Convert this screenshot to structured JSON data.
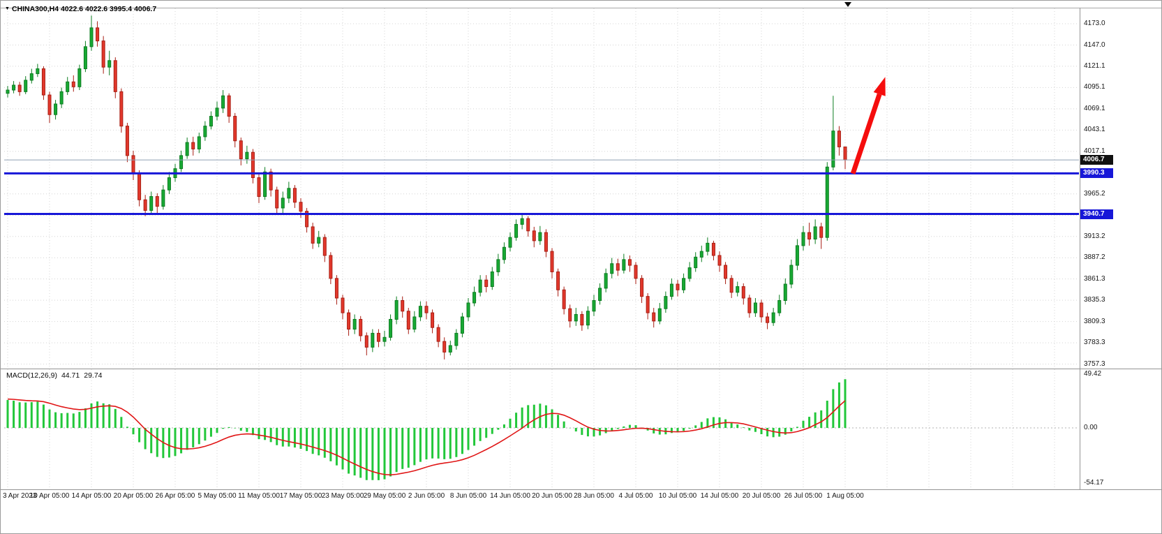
{
  "window": {
    "symbol_period": "CHINA300,H4",
    "ohlc_text": "4022.6 4022.6 3995.4 4006.7"
  },
  "colors": {
    "bull": "#18a934",
    "bull_border": "#0c7d20",
    "bear": "#e2382c",
    "bear_border": "#a81e13",
    "hline_blue": "#1717d8",
    "grid": "#d4d4d4",
    "zero_line": "#b0b0b0",
    "macd_hist": "#22c73a",
    "macd_signal": "#e01515",
    "arrow": "#f50d0d",
    "price_line": "#8fa0b4",
    "tag_current_bg": "#101010",
    "text": "#111111"
  },
  "chart_data": [
    {
      "type": "candlestick",
      "symbol": "CHINA300",
      "timeframe": "H4",
      "current_bar": {
        "open": 4022.6,
        "high": 4022.6,
        "low": 3995.4,
        "close": 4006.7
      },
      "y_axis_ticks": [
        "4173.0",
        "4147.0",
        "4121.1",
        "4095.1",
        "4069.1",
        "4043.1",
        "4017.1",
        "3991.2",
        "3965.2",
        "3939.2",
        "3913.2",
        "3887.2",
        "3861.3",
        "3835.3",
        "3809.3",
        "3783.3",
        "3757.3"
      ],
      "x_axis_ticks": [
        "3 Apr 2023",
        "10 Apr 05:00",
        "14 Apr 05:00",
        "20 Apr 05:00",
        "26 Apr 05:00",
        "5 May 05:00",
        "11 May 05:00",
        "17 May 05:00",
        "23 May 05:00",
        "29 May 05:00",
        "2 Jun 05:00",
        "8 Jun 05:00",
        "14 Jun 05:00",
        "20 Jun 05:00",
        "28 Jun 05:00",
        "4 Jul 05:00",
        "10 Jul 05:00",
        "14 Jul 05:00",
        "20 Jul 05:00",
        "26 Jul 05:00",
        "1 Aug 05:00"
      ],
      "bars_per_tick": 7,
      "horizontal_lines": [
        {
          "price": 3990.3,
          "label": "3990.3"
        },
        {
          "price": 3940.7,
          "label": "3940.7"
        }
      ],
      "current_price": {
        "price": 4006.7,
        "label": "4006.7"
      },
      "arrow_annotation": {
        "from": {
          "bar": 141.3,
          "price": 3990
        },
        "to": {
          "bar": 146.7,
          "price": 4108
        }
      },
      "candles": [
        [
          4088,
          4097,
          4083,
          4092
        ],
        [
          4092,
          4103,
          4088,
          4098
        ],
        [
          4098,
          4102,
          4085,
          4090
        ],
        [
          4090,
          4109,
          4087,
          4104
        ],
        [
          4104,
          4118,
          4100,
          4112
        ],
        [
          4112,
          4124,
          4108,
          4118
        ],
        [
          4118,
          4121,
          4080,
          4086
        ],
        [
          4086,
          4090,
          4052,
          4062
        ],
        [
          4062,
          4080,
          4056,
          4075
        ],
        [
          4075,
          4095,
          4070,
          4090
        ],
        [
          4090,
          4108,
          4086,
          4102
        ],
        [
          4102,
          4110,
          4090,
          4096
        ],
        [
          4096,
          4123,
          4092,
          4118
        ],
        [
          4118,
          4152,
          4114,
          4145
        ],
        [
          4145,
          4183,
          4140,
          4168
        ],
        [
          4168,
          4176,
          4145,
          4152
        ],
        [
          4152,
          4158,
          4112,
          4120
        ],
        [
          4120,
          4140,
          4110,
          4128
        ],
        [
          4128,
          4132,
          4082,
          4090
        ],
        [
          4090,
          4094,
          4040,
          4048
        ],
        [
          4048,
          4052,
          4004,
          4012
        ],
        [
          4012,
          4018,
          3982,
          3990
        ],
        [
          3990,
          3994,
          3950,
          3958
        ],
        [
          3958,
          3964,
          3938,
          3945
        ],
        [
          3945,
          3968,
          3940,
          3962
        ],
        [
          3962,
          3966,
          3942,
          3950
        ],
        [
          3950,
          3976,
          3946,
          3970
        ],
        [
          3970,
          3992,
          3965,
          3985
        ],
        [
          3985,
          4002,
          3980,
          3996
        ],
        [
          3996,
          4018,
          3992,
          4012
        ],
        [
          4012,
          4034,
          4008,
          4028
        ],
        [
          4028,
          4035,
          4012,
          4020
        ],
        [
          4020,
          4040,
          4015,
          4035
        ],
        [
          4035,
          4054,
          4030,
          4048
        ],
        [
          4048,
          4066,
          4044,
          4060
        ],
        [
          4060,
          4078,
          4055,
          4070
        ],
        [
          4070,
          4092,
          4064,
          4085
        ],
        [
          4085,
          4088,
          4052,
          4060
        ],
        [
          4060,
          4064,
          4022,
          4030
        ],
        [
          4030,
          4034,
          4000,
          4008
        ],
        [
          4008,
          4024,
          4002,
          4016
        ],
        [
          4016,
          4020,
          3978,
          3985
        ],
        [
          3985,
          3990,
          3954,
          3962
        ],
        [
          3962,
          3998,
          3958,
          3992
        ],
        [
          3992,
          3996,
          3962,
          3970
        ],
        [
          3970,
          3974,
          3940,
          3948
        ],
        [
          3948,
          3968,
          3942,
          3960
        ],
        [
          3960,
          3980,
          3954,
          3972
        ],
        [
          3972,
          3976,
          3948,
          3955
        ],
        [
          3955,
          3960,
          3936,
          3944
        ],
        [
          3944,
          3948,
          3918,
          3925
        ],
        [
          3925,
          3930,
          3898,
          3905
        ],
        [
          3905,
          3920,
          3900,
          3912
        ],
        [
          3912,
          3916,
          3882,
          3890
        ],
        [
          3890,
          3894,
          3855,
          3862
        ],
        [
          3862,
          3866,
          3830,
          3838
        ],
        [
          3838,
          3842,
          3812,
          3820
        ],
        [
          3820,
          3824,
          3792,
          3800
        ],
        [
          3800,
          3818,
          3794,
          3812
        ],
        [
          3812,
          3816,
          3785,
          3792
        ],
        [
          3792,
          3796,
          3768,
          3778
        ],
        [
          3778,
          3800,
          3772,
          3795
        ],
        [
          3795,
          3800,
          3778,
          3785
        ],
        [
          3785,
          3798,
          3779,
          3790
        ],
        [
          3790,
          3818,
          3786,
          3812
        ],
        [
          3812,
          3840,
          3806,
          3835
        ],
        [
          3835,
          3840,
          3814,
          3822
        ],
        [
          3822,
          3826,
          3794,
          3800
        ],
        [
          3800,
          3822,
          3796,
          3815
        ],
        [
          3815,
          3834,
          3810,
          3828
        ],
        [
          3828,
          3834,
          3812,
          3820
        ],
        [
          3820,
          3824,
          3795,
          3802
        ],
        [
          3802,
          3806,
          3778,
          3785
        ],
        [
          3785,
          3790,
          3763,
          3772
        ],
        [
          3772,
          3786,
          3768,
          3780
        ],
        [
          3780,
          3800,
          3775,
          3795
        ],
        [
          3795,
          3820,
          3790,
          3815
        ],
        [
          3815,
          3838,
          3810,
          3832
        ],
        [
          3832,
          3852,
          3828,
          3845
        ],
        [
          3845,
          3866,
          3840,
          3860
        ],
        [
          3860,
          3866,
          3845,
          3852
        ],
        [
          3852,
          3876,
          3848,
          3870
        ],
        [
          3870,
          3892,
          3865,
          3885
        ],
        [
          3885,
          3906,
          3880,
          3900
        ],
        [
          3900,
          3918,
          3895,
          3912
        ],
        [
          3912,
          3934,
          3908,
          3928
        ],
        [
          3928,
          3942,
          3922,
          3935
        ],
        [
          3935,
          3938,
          3913,
          3920
        ],
        [
          3920,
          3925,
          3900,
          3908
        ],
        [
          3908,
          3926,
          3903,
          3918
        ],
        [
          3918,
          3922,
          3888,
          3895
        ],
        [
          3895,
          3899,
          3862,
          3870
        ],
        [
          3870,
          3874,
          3840,
          3848
        ],
        [
          3848,
          3852,
          3818,
          3825
        ],
        [
          3825,
          3830,
          3802,
          3810
        ],
        [
          3810,
          3826,
          3804,
          3818
        ],
        [
          3818,
          3822,
          3798,
          3805
        ],
        [
          3805,
          3828,
          3800,
          3822
        ],
        [
          3822,
          3842,
          3816,
          3835
        ],
        [
          3835,
          3856,
          3830,
          3850
        ],
        [
          3850,
          3874,
          3845,
          3868
        ],
        [
          3868,
          3887,
          3862,
          3880
        ],
        [
          3880,
          3886,
          3865,
          3872
        ],
        [
          3872,
          3892,
          3868,
          3885
        ],
        [
          3885,
          3890,
          3870,
          3878
        ],
        [
          3878,
          3882,
          3855,
          3862
        ],
        [
          3862,
          3866,
          3832,
          3840
        ],
        [
          3840,
          3844,
          3812,
          3820
        ],
        [
          3820,
          3826,
          3802,
          3810
        ],
        [
          3810,
          3832,
          3806,
          3825
        ],
        [
          3825,
          3846,
          3820,
          3840
        ],
        [
          3840,
          3862,
          3836,
          3855
        ],
        [
          3855,
          3860,
          3840,
          3848
        ],
        [
          3848,
          3868,
          3844,
          3862
        ],
        [
          3862,
          3882,
          3858,
          3875
        ],
        [
          3875,
          3894,
          3870,
          3888
        ],
        [
          3888,
          3902,
          3882,
          3895
        ],
        [
          3895,
          3912,
          3890,
          3905
        ],
        [
          3905,
          3908,
          3884,
          3890
        ],
        [
          3890,
          3895,
          3870,
          3878
        ],
        [
          3878,
          3882,
          3855,
          3862
        ],
        [
          3862,
          3866,
          3838,
          3845
        ],
        [
          3845,
          3858,
          3840,
          3852
        ],
        [
          3852,
          3856,
          3830,
          3838
        ],
        [
          3838,
          3842,
          3814,
          3820
        ],
        [
          3820,
          3838,
          3815,
          3832
        ],
        [
          3832,
          3836,
          3808,
          3815
        ],
        [
          3815,
          3820,
          3800,
          3808
        ],
        [
          3808,
          3826,
          3804,
          3820
        ],
        [
          3820,
          3842,
          3816,
          3835
        ],
        [
          3835,
          3862,
          3830,
          3855
        ],
        [
          3855,
          3885,
          3850,
          3878
        ],
        [
          3878,
          3910,
          3872,
          3902
        ],
        [
          3902,
          3926,
          3896,
          3918
        ],
        [
          3918,
          3930,
          3902,
          3910
        ],
        [
          3910,
          3934,
          3904,
          3925
        ],
        [
          3925,
          3930,
          3898,
          3912
        ],
        [
          3912,
          4004,
          3908,
          3998
        ],
        [
          3998,
          4085,
          3994,
          4042
        ],
        [
          4042,
          4048,
          4012,
          4022.6
        ],
        [
          4022.6,
          4022.6,
          3995.4,
          4006.7
        ]
      ]
    },
    {
      "type": "macd",
      "label": "MACD(12,26,9)",
      "value_main": "44.71",
      "value_signal": "29.74",
      "params": {
        "fast": 12,
        "slow": 26,
        "signal": 9
      },
      "axis_ticks": [
        "49.42",
        "0.00",
        "-54.17"
      ],
      "axis_max": 49.42,
      "axis_min": -54.17,
      "ema_seed_fast": 4082,
      "ema_seed_slow": 4058,
      "signal_seed": 24,
      "scale_last_to": 44.71,
      "scale_min_to": -48
    }
  ]
}
